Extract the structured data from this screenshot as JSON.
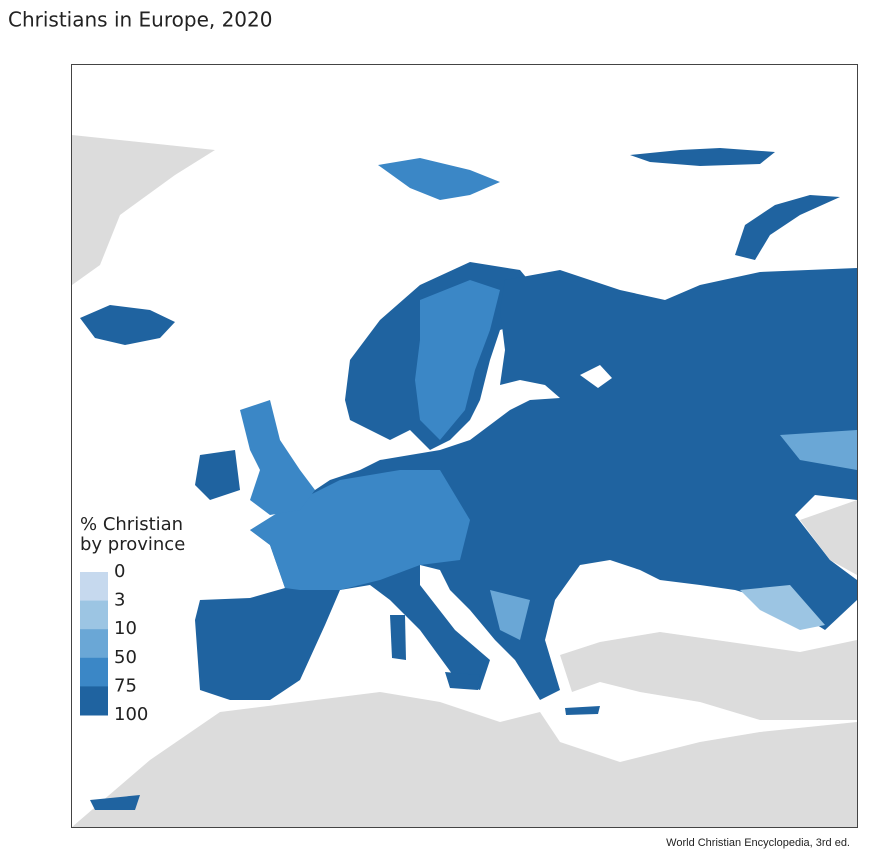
{
  "title": "Christians in Europe, 2020",
  "legend": {
    "title_lines": [
      "% Christian",
      "by province"
    ],
    "breaks": [
      0,
      3,
      10,
      50,
      75,
      100
    ],
    "colors": [
      "#c6d9ee",
      "#9cc5e3",
      "#6aa7d6",
      "#3b87c6",
      "#1f63a0"
    ]
  },
  "source": "World Christian Encyclopedia, 3rd ed."
}
